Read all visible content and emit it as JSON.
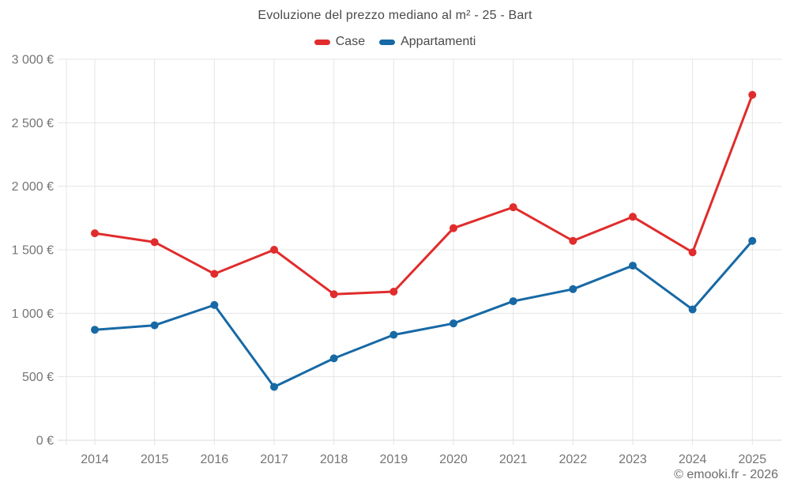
{
  "title": "Evoluzione del prezzo mediano al m² - 25 - Bart",
  "legend": [
    {
      "label": "Case",
      "color": "#e02c2c"
    },
    {
      "label": "Appartamenti",
      "color": "#1769a5"
    }
  ],
  "watermark": "© emooki.fr - 2026",
  "chart_data": {
    "type": "line",
    "title": "Evoluzione del prezzo mediano al m² - 25 - Bart",
    "categories": [
      "2014",
      "2015",
      "2016",
      "2017",
      "2018",
      "2019",
      "2020",
      "2021",
      "2022",
      "2023",
      "2024",
      "2025"
    ],
    "series": [
      {
        "name": "Case",
        "color": "#e02c2c",
        "values": [
          1630,
          1560,
          1310,
          1500,
          1150,
          1170,
          1670,
          1835,
          1570,
          1760,
          1480,
          2720
        ]
      },
      {
        "name": "Appartamenti",
        "color": "#1769a5",
        "values": [
          870,
          905,
          1065,
          420,
          645,
          830,
          920,
          1095,
          1190,
          1375,
          1030,
          1570
        ]
      }
    ],
    "xlabel": "",
    "ylabel": "",
    "ylim": [
      0,
      3000
    ],
    "ytick_step": 500,
    "ytick_labels": [
      "0 €",
      "500 €",
      "1 000 €",
      "1 500 €",
      "2 000 €",
      "2 500 €",
      "3 000 €"
    ],
    "currency": "€",
    "grid": true,
    "legend_position": "top",
    "marker": "circle",
    "marker_radius": 5
  }
}
